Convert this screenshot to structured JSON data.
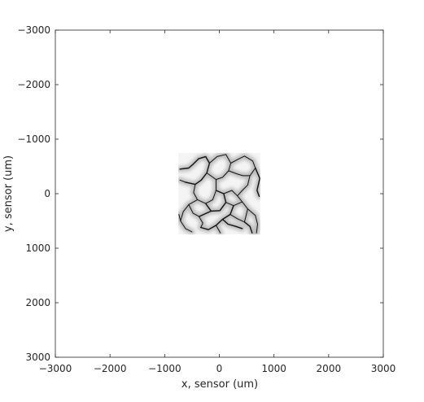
{
  "chart_data": {
    "type": "heatmap",
    "title": "",
    "xlabel": "x, sensor (um)",
    "ylabel": "y, sensor (um)",
    "xlim": [
      -3000,
      3000
    ],
    "ylim": [
      -3000,
      3000
    ],
    "y_axis_reversed": true,
    "xticks": [
      -3000,
      -2000,
      -1000,
      0,
      1000,
      2000,
      3000
    ],
    "yticks": [
      -3000,
      -2000,
      -1000,
      0,
      1000,
      2000,
      3000
    ],
    "grid": false,
    "colormap": "grayscale (white low, black high)",
    "image_extent": {
      "x": [
        -750,
        750
      ],
      "y": [
        -750,
        750
      ]
    }
  }
}
